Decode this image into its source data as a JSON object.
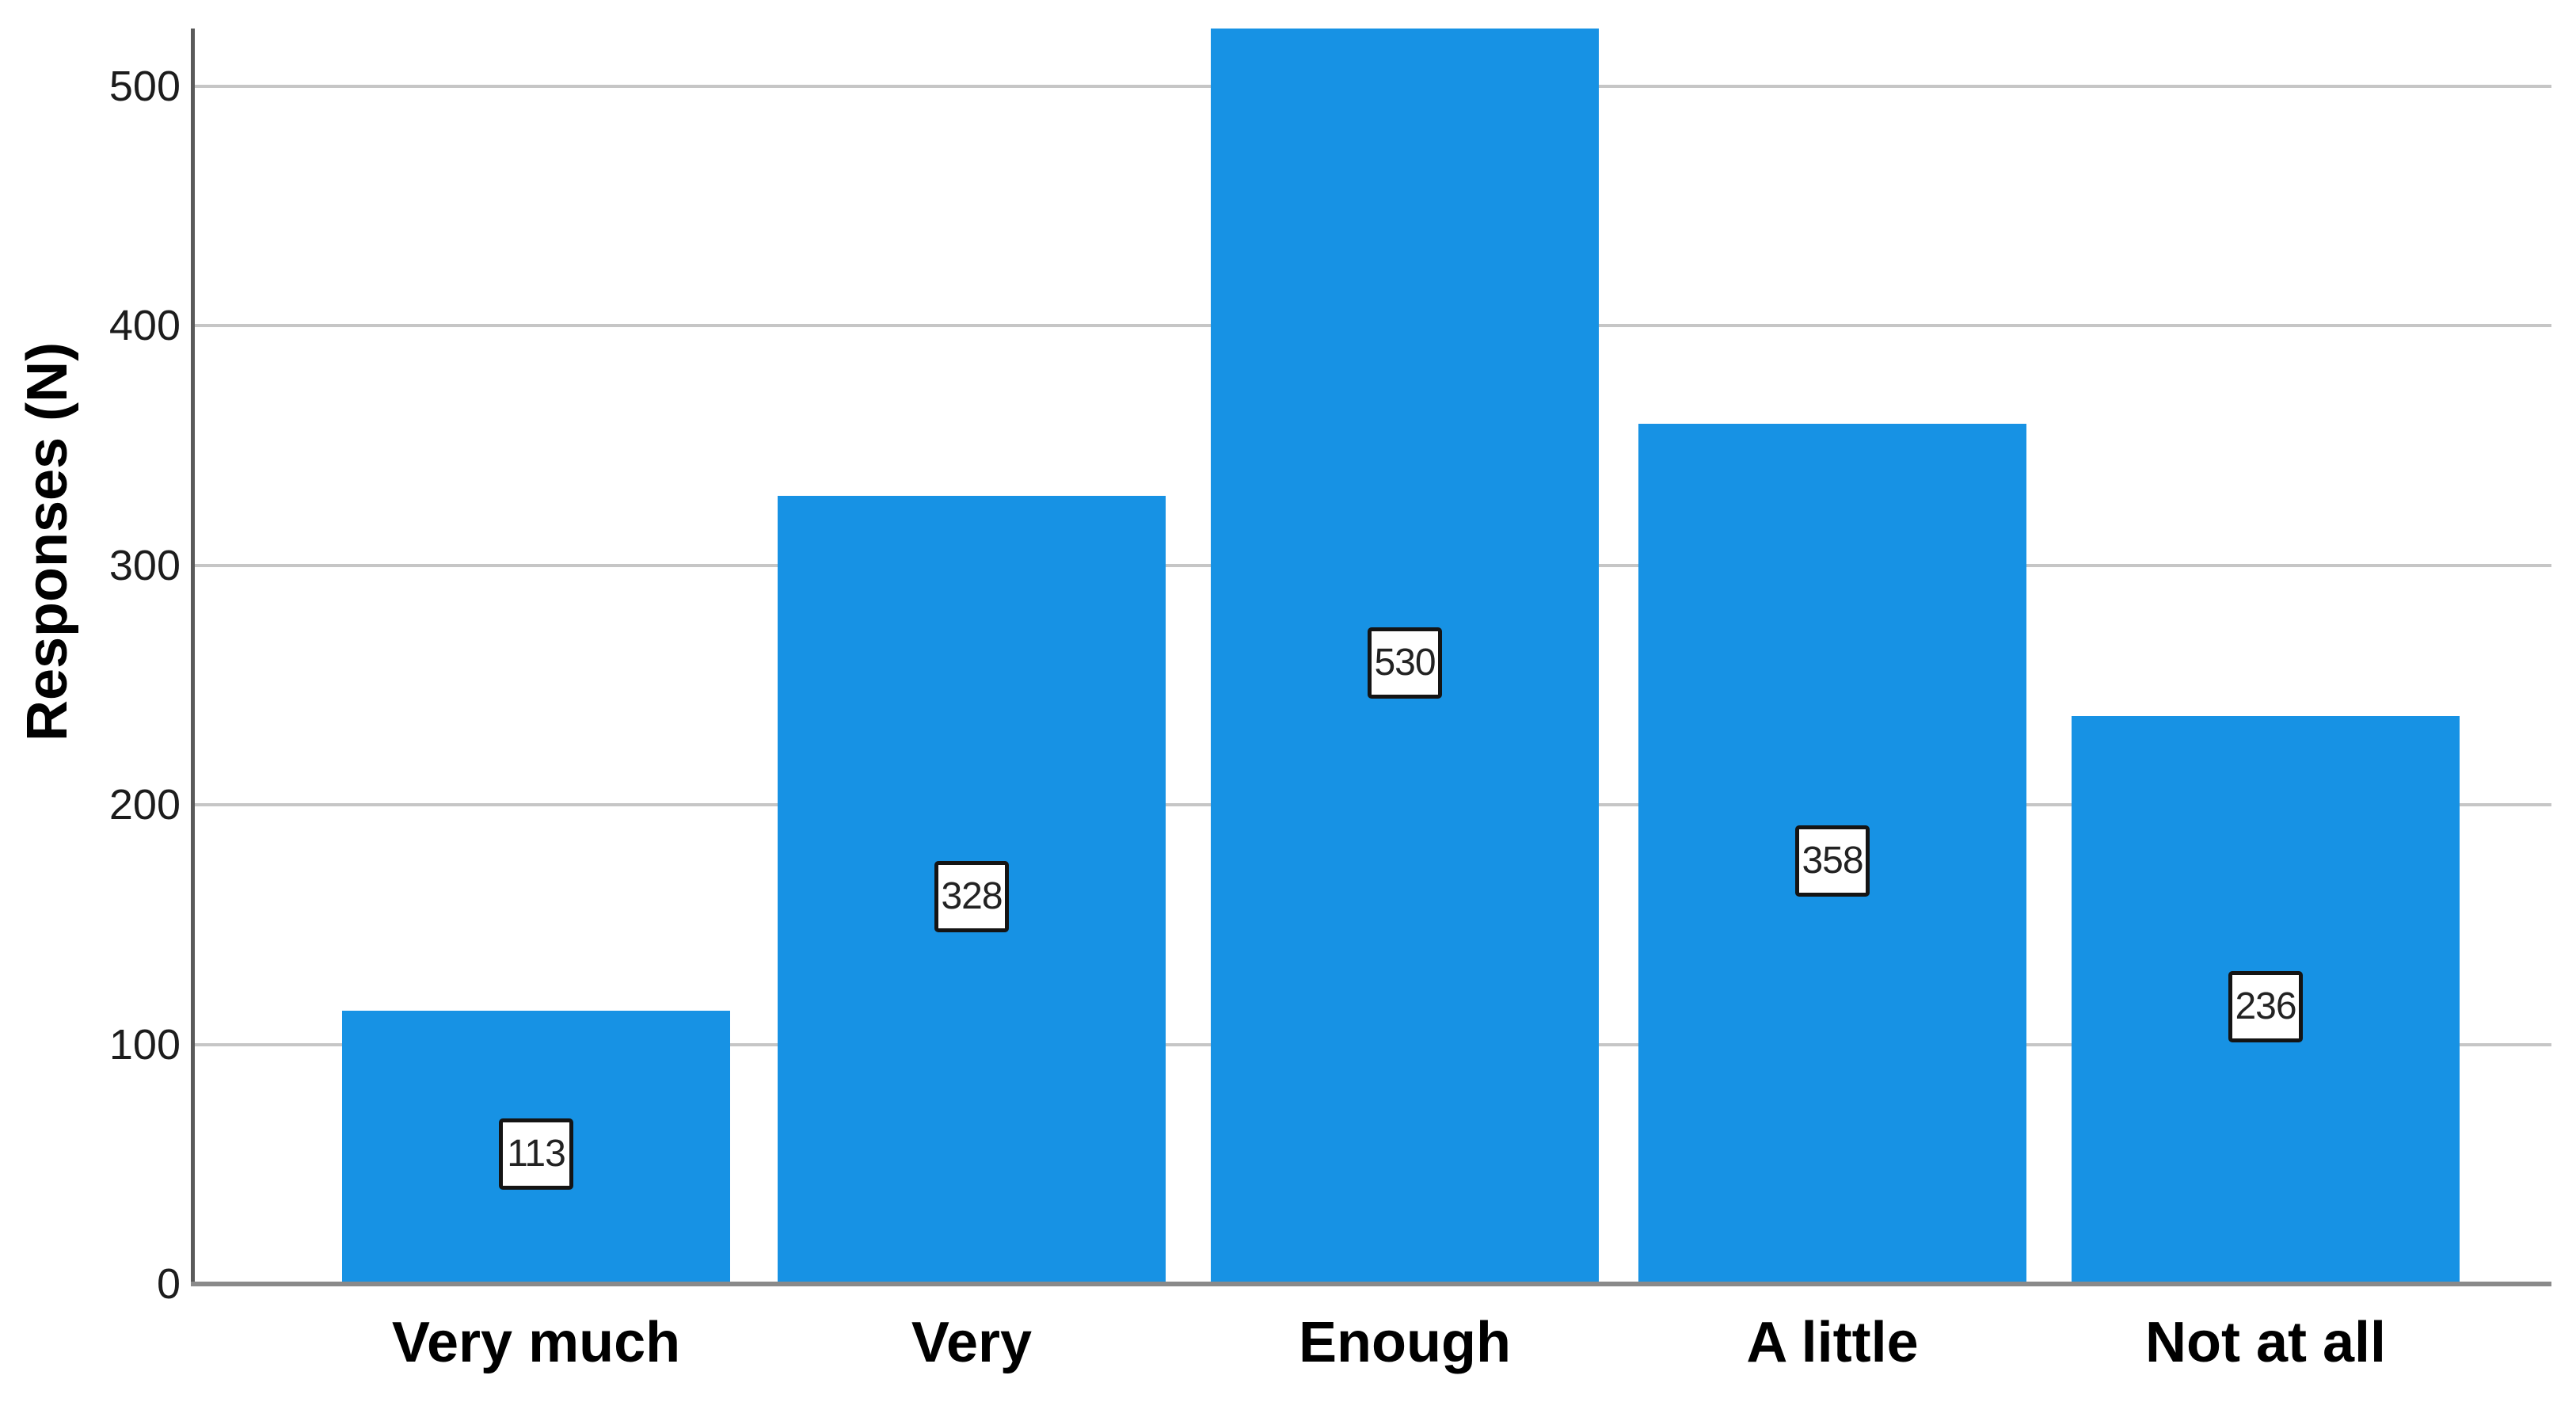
{
  "chart_data": {
    "type": "bar",
    "title": "",
    "xlabel": "",
    "ylabel": "Responses (N)",
    "categories": [
      "Very much",
      "Very",
      "Enough",
      "A little",
      "Not at all"
    ],
    "values": [
      113,
      328,
      530,
      358,
      236
    ],
    "yticks": [
      0,
      100,
      200,
      300,
      400,
      500
    ],
    "ylim": [
      0,
      523
    ],
    "grid": "horizontal-only",
    "legend": "none",
    "bar_label_style": "boxed-inside-bar",
    "colors": {
      "bar": "#1792E4",
      "gridline": "#C6C6C6",
      "baseline": "#8A8A8A",
      "yaxis_line": "#5A5A5A",
      "value_box_bg": "#FFFFFF",
      "value_box_border": "#141414",
      "value_text": "#222222",
      "tick_text": "#1C1C1C",
      "category_text": "#000000",
      "background": "#FFFFFF"
    }
  }
}
